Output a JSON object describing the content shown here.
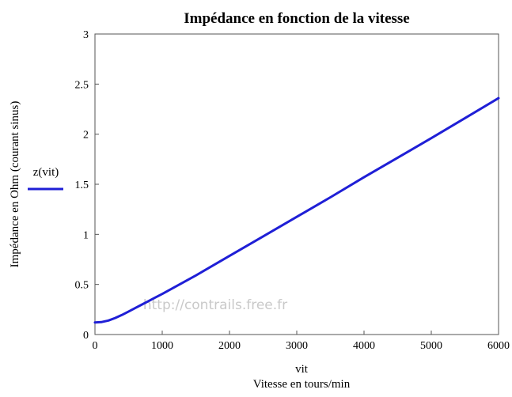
{
  "chart_data": {
    "type": "line",
    "title": "Impédance en fonction de la vitesse",
    "xlabel_var": "vit",
    "xlabel": "Vitesse en tours/min",
    "ylabel": "Impédance en Ohm (courant sinus)",
    "xlim": [
      0,
      6000
    ],
    "ylim": [
      0,
      3
    ],
    "xticks": [
      0,
      1000,
      2000,
      3000,
      4000,
      5000,
      6000
    ],
    "yticks": [
      0,
      0.5,
      1,
      1.5,
      2,
      2.5,
      3
    ],
    "grid": false,
    "legend_position": "left",
    "series": [
      {
        "name": "z(vit)",
        "color": "#1f1fd6",
        "x": [
          0,
          100,
          200,
          300,
          400,
          500,
          600,
          700,
          800,
          900,
          1000,
          1500,
          2000,
          2500,
          3000,
          3500,
          4000,
          4500,
          5000,
          5500,
          6000
        ],
        "y": [
          0.12,
          0.125,
          0.14,
          0.165,
          0.195,
          0.23,
          0.265,
          0.3,
          0.335,
          0.37,
          0.405,
          0.59,
          0.785,
          0.98,
          1.175,
          1.37,
          1.57,
          1.765,
          1.96,
          2.16,
          2.36
        ]
      }
    ],
    "watermark": "http://contrails.free.fr"
  }
}
